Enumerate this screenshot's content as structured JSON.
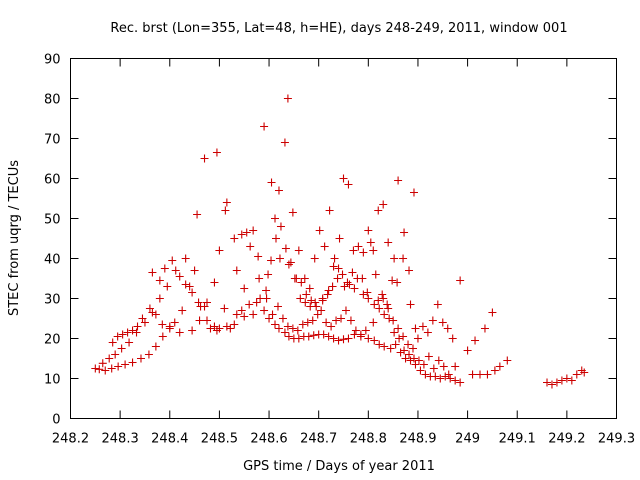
{
  "chart_data": {
    "type": "scatter",
    "title": "Rec. brst (Lon=355, Lat=48, h=HE), days 248-249, 2011, window 001",
    "xlabel": "GPS time / Days of year 2011",
    "ylabel": "STEC from uqrg / TECUs",
    "xlim": [
      248.2,
      249.3
    ],
    "ylim": [
      0,
      90
    ],
    "x_ticks": [
      "248.2",
      "248.3",
      "248.4",
      "248.5",
      "248.6",
      "248.7",
      "248.8",
      "248.9",
      "249",
      "249.1",
      "249.2",
      "249.3"
    ],
    "y_ticks": [
      "0",
      "10",
      "20",
      "30",
      "40",
      "50",
      "60",
      "70",
      "80",
      "90"
    ],
    "grid": false,
    "legend": "none",
    "marker": "plus",
    "color": "#cc0000",
    "series": [
      {
        "values": [
          [
            248.25,
            12.5
          ],
          [
            248.258,
            12.3
          ],
          [
            248.265,
            13.8
          ],
          [
            248.27,
            12.0
          ],
          [
            248.278,
            15.0
          ],
          [
            248.283,
            12.5
          ],
          [
            248.29,
            16.0
          ],
          [
            248.296,
            13.0
          ],
          [
            248.303,
            17.5
          ],
          [
            248.31,
            13.5
          ],
          [
            248.318,
            19.0
          ],
          [
            248.325,
            14.0
          ],
          [
            248.333,
            21.5
          ],
          [
            248.342,
            15.0
          ],
          [
            248.35,
            24.0
          ],
          [
            248.358,
            16.0
          ],
          [
            248.365,
            26.5
          ],
          [
            248.372,
            18.0
          ],
          [
            248.38,
            30.0
          ],
          [
            248.386,
            20.5
          ],
          [
            248.395,
            33.0
          ],
          [
            248.4,
            22.5
          ],
          [
            248.412,
            37.0
          ],
          [
            248.42,
            21.5
          ],
          [
            248.432,
            40.0
          ],
          [
            248.445,
            22.0
          ],
          [
            248.46,
            24.5
          ],
          [
            248.475,
            24.5
          ],
          [
            248.49,
            23.0
          ],
          [
            248.5,
            22.5
          ],
          [
            248.515,
            23.0
          ],
          [
            248.53,
            23.5
          ],
          [
            248.545,
            27.0
          ],
          [
            248.56,
            28.5
          ],
          [
            248.575,
            29.0
          ],
          [
            248.59,
            27.0
          ],
          [
            248.6,
            25.0
          ],
          [
            248.612,
            23.5
          ],
          [
            248.62,
            22.5
          ],
          [
            248.632,
            21.5
          ],
          [
            248.64,
            20.5
          ],
          [
            248.65,
            20.0
          ],
          [
            248.66,
            20.0
          ],
          [
            248.67,
            20.5
          ],
          [
            248.68,
            20.5
          ],
          [
            248.69,
            20.8
          ],
          [
            248.7,
            21.0
          ],
          [
            248.71,
            21.0
          ],
          [
            248.72,
            20.5
          ],
          [
            248.73,
            20.0
          ],
          [
            248.74,
            19.5
          ],
          [
            248.75,
            19.8
          ],
          [
            248.76,
            20.0
          ],
          [
            248.772,
            21.0
          ],
          [
            248.785,
            20.5
          ],
          [
            248.8,
            20.0
          ],
          [
            248.812,
            19.5
          ],
          [
            248.822,
            18.5
          ],
          [
            248.832,
            18.0
          ],
          [
            248.845,
            17.5
          ],
          [
            248.855,
            18.5
          ],
          [
            248.865,
            16.5
          ],
          [
            248.875,
            15.0
          ],
          [
            248.885,
            14.5
          ],
          [
            248.895,
            13.5
          ],
          [
            248.905,
            12.0
          ],
          [
            248.915,
            11.0
          ],
          [
            248.925,
            10.5
          ],
          [
            248.935,
            10.5
          ],
          [
            248.945,
            10.0
          ],
          [
            248.955,
            10.5
          ],
          [
            248.965,
            10.0
          ],
          [
            248.975,
            9.5
          ],
          [
            248.985,
            9.0
          ],
          [
            249.01,
            11.0
          ],
          [
            249.025,
            11.0
          ],
          [
            249.04,
            11.0
          ],
          [
            249.055,
            12.0
          ],
          [
            249.065,
            13.0
          ],
          [
            249.08,
            14.5
          ],
          [
            249.16,
            9.0
          ],
          [
            249.17,
            8.5
          ],
          [
            249.18,
            9.0
          ],
          [
            249.19,
            9.5
          ],
          [
            249.2,
            10.0
          ],
          [
            249.21,
            9.5
          ],
          [
            249.22,
            11.0
          ],
          [
            249.23,
            12.0
          ],
          [
            249.235,
            11.5
          ],
          [
            248.285,
            19.0
          ],
          [
            248.295,
            20.5
          ],
          [
            248.305,
            21.0
          ],
          [
            248.315,
            21.5
          ],
          [
            248.325,
            22.0
          ],
          [
            248.335,
            23.0
          ],
          [
            248.345,
            25.0
          ],
          [
            248.36,
            27.5
          ],
          [
            248.372,
            26.0
          ],
          [
            248.385,
            23.5
          ],
          [
            248.4,
            23.0
          ],
          [
            248.41,
            24.0
          ],
          [
            248.425,
            27.0
          ],
          [
            248.44,
            33.0
          ],
          [
            248.45,
            37.0
          ],
          [
            248.462,
            28.0
          ],
          [
            248.475,
            29.0
          ],
          [
            248.49,
            34.0
          ],
          [
            248.5,
            42.0
          ],
          [
            248.515,
            54.0
          ],
          [
            248.53,
            45.0
          ],
          [
            248.545,
            46.0
          ],
          [
            248.562,
            43.0
          ],
          [
            248.58,
            35.0
          ],
          [
            248.595,
            30.0
          ],
          [
            248.607,
            26.0
          ],
          [
            248.618,
            28.0
          ],
          [
            248.628,
            25.0
          ],
          [
            248.638,
            23.0
          ],
          [
            248.648,
            22.5
          ],
          [
            248.658,
            22.0
          ],
          [
            248.668,
            23.5
          ],
          [
            248.678,
            24.0
          ],
          [
            248.688,
            24.5
          ],
          [
            248.698,
            26.0
          ],
          [
            248.708,
            29.5
          ],
          [
            248.718,
            31.0
          ],
          [
            248.728,
            33.0
          ],
          [
            248.738,
            35.0
          ],
          [
            248.748,
            36.0
          ],
          [
            248.758,
            34.0
          ],
          [
            248.768,
            36.5
          ],
          [
            248.778,
            35.0
          ],
          [
            248.79,
            31.0
          ],
          [
            248.8,
            30.0
          ],
          [
            248.812,
            28.5
          ],
          [
            248.822,
            27.5
          ],
          [
            248.832,
            26.0
          ],
          [
            248.842,
            25.0
          ],
          [
            248.852,
            21.5
          ],
          [
            248.862,
            20.0
          ],
          [
            248.872,
            17.0
          ],
          [
            248.882,
            16.0
          ],
          [
            248.892,
            15.0
          ],
          [
            248.902,
            14.5
          ],
          [
            248.912,
            13.5
          ],
          [
            248.922,
            15.5
          ],
          [
            248.932,
            12.5
          ],
          [
            248.942,
            14.5
          ],
          [
            248.952,
            13.0
          ],
          [
            248.962,
            11.0
          ],
          [
            248.975,
            13.0
          ],
          [
            248.365,
            36.5
          ],
          [
            248.38,
            34.5
          ],
          [
            248.39,
            37.5
          ],
          [
            248.405,
            39.5
          ],
          [
            248.42,
            35.5
          ],
          [
            248.432,
            33.5
          ],
          [
            248.445,
            31.5
          ],
          [
            248.458,
            29.0
          ],
          [
            248.47,
            28.0
          ],
          [
            248.482,
            22.5
          ],
          [
            248.495,
            22.0
          ],
          [
            248.51,
            27.5
          ],
          [
            248.522,
            22.5
          ],
          [
            248.535,
            26.0
          ],
          [
            248.55,
            25.5
          ],
          [
            248.568,
            26.0
          ],
          [
            248.582,
            30.0
          ],
          [
            248.594,
            32.0
          ],
          [
            248.604,
            39.5
          ],
          [
            248.614,
            45.0
          ],
          [
            248.624,
            48.0
          ],
          [
            248.634,
            42.5
          ],
          [
            248.644,
            39.0
          ],
          [
            248.655,
            35.0
          ],
          [
            248.665,
            34.0
          ],
          [
            248.675,
            31.0
          ],
          [
            248.685,
            29.5
          ],
          [
            248.695,
            28.0
          ],
          [
            248.705,
            27.0
          ],
          [
            248.715,
            24.0
          ],
          [
            248.725,
            23.0
          ],
          [
            248.735,
            24.5
          ],
          [
            248.745,
            25.0
          ],
          [
            248.755,
            27.0
          ],
          [
            248.765,
            24.5
          ],
          [
            248.775,
            22.0
          ],
          [
            248.785,
            21.0
          ],
          [
            248.795,
            22.0
          ],
          [
            248.81,
            24.0
          ],
          [
            248.82,
            29.5
          ],
          [
            248.83,
            30.0
          ],
          [
            248.84,
            27.5
          ],
          [
            248.85,
            24.5
          ],
          [
            248.86,
            22.5
          ],
          [
            248.87,
            20.5
          ],
          [
            248.88,
            18.5
          ],
          [
            248.89,
            17.5
          ],
          [
            248.9,
            20.0
          ],
          [
            248.91,
            23.0
          ],
          [
            248.92,
            21.5
          ],
          [
            248.93,
            24.5
          ],
          [
            248.94,
            28.5
          ],
          [
            248.95,
            24.0
          ],
          [
            248.96,
            22.5
          ],
          [
            248.97,
            20.0
          ],
          [
            248.985,
            34.5
          ],
          [
            249.0,
            17.0
          ],
          [
            249.015,
            19.5
          ],
          [
            249.035,
            22.5
          ],
          [
            249.05,
            26.5
          ],
          [
            248.455,
            51.0
          ],
          [
            248.47,
            65.0
          ],
          [
            248.495,
            66.5
          ],
          [
            248.512,
            52.0
          ],
          [
            248.535,
            37.0
          ],
          [
            248.55,
            32.5
          ],
          [
            248.568,
            47.0
          ],
          [
            248.59,
            73.0
          ],
          [
            248.605,
            59.0
          ],
          [
            248.62,
            57.0
          ],
          [
            248.632,
            69.0
          ],
          [
            248.638,
            80.0
          ],
          [
            248.648,
            51.5
          ],
          [
            248.66,
            42.0
          ],
          [
            248.672,
            35.0
          ],
          [
            248.682,
            32.5
          ],
          [
            248.692,
            40.0
          ],
          [
            248.702,
            47.0
          ],
          [
            248.712,
            43.0
          ],
          [
            248.722,
            52.0
          ],
          [
            248.732,
            40.0
          ],
          [
            248.742,
            45.0
          ],
          [
            248.75,
            60.0
          ],
          [
            248.76,
            58.5
          ],
          [
            248.77,
            42.0
          ],
          [
            248.78,
            43.0
          ],
          [
            248.79,
            41.5
          ],
          [
            248.8,
            47.0
          ],
          [
            248.81,
            42.0
          ],
          [
            248.82,
            52.0
          ],
          [
            248.83,
            53.5
          ],
          [
            248.84,
            44.0
          ],
          [
            248.852,
            40.0
          ],
          [
            248.86,
            59.5
          ],
          [
            248.872,
            46.5
          ],
          [
            248.882,
            37.0
          ],
          [
            248.892,
            56.5
          ],
          [
            248.555,
            46.5
          ],
          [
            248.578,
            40.5
          ],
          [
            248.598,
            36.0
          ],
          [
            248.612,
            50.0
          ],
          [
            248.622,
            40.0
          ],
          [
            248.64,
            38.5
          ],
          [
            248.652,
            35.0
          ],
          [
            248.663,
            30.0
          ],
          [
            248.673,
            29.0
          ],
          [
            248.683,
            28.0
          ],
          [
            248.693,
            29.0
          ],
          [
            248.708,
            30.0
          ],
          [
            248.72,
            32.0
          ],
          [
            248.73,
            38.0
          ],
          [
            248.74,
            37.5
          ],
          [
            248.752,
            33.0
          ],
          [
            248.762,
            33.5
          ],
          [
            248.772,
            32.5
          ],
          [
            248.788,
            35.0
          ],
          [
            248.798,
            31.5
          ],
          [
            248.805,
            44.0
          ],
          [
            248.815,
            36.0
          ],
          [
            248.828,
            31.0
          ],
          [
            248.838,
            28.5
          ],
          [
            248.848,
            34.5
          ],
          [
            248.858,
            34.0
          ],
          [
            248.87,
            40.0
          ],
          [
            248.885,
            28.5
          ],
          [
            248.895,
            22.5
          ]
        ]
      }
    ]
  }
}
